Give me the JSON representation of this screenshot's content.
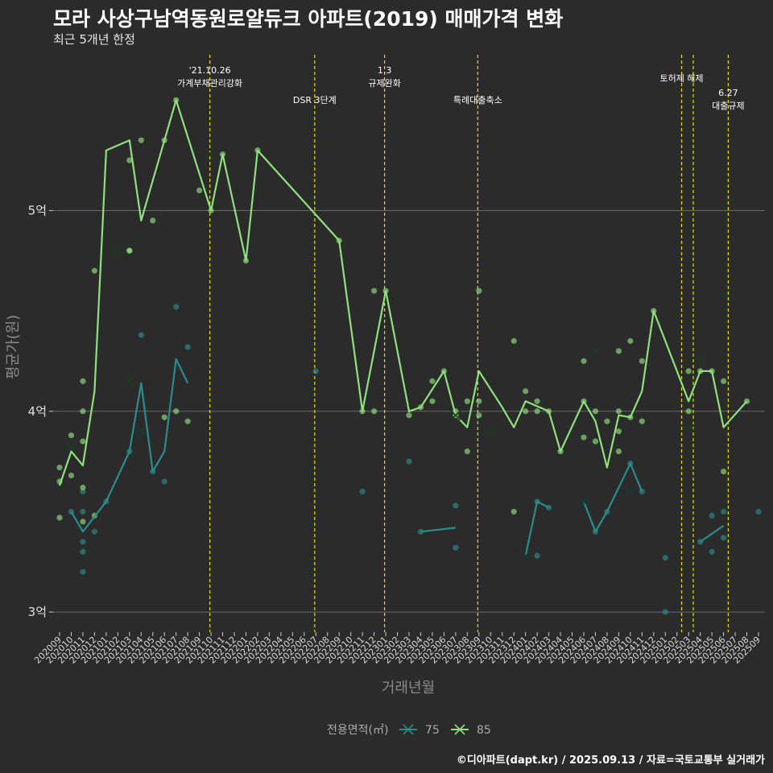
{
  "title": "모라 사상구남역동원로얄듀크 아파트(2019) 매매가격 변화",
  "subtitle": "최근 5개년 한정",
  "caption": "©디아파트(dapt.kr) / 2025.09.13 / 자료=국토교통부 실거래가",
  "colors": {
    "s75": "#2a8c8c",
    "s85": "#8fe07e",
    "vline": "#e8e000",
    "grid": "#6a6a6a"
  },
  "chart_data": {
    "type": "line",
    "xlabel": "거래년월",
    "ylabel": "평균가(원)",
    "ylim": [
      2.9,
      5.8
    ],
    "yticks": [
      {
        "value": 3,
        "label": "3억"
      },
      {
        "value": 4,
        "label": "4억"
      },
      {
        "value": 5,
        "label": "5억"
      }
    ],
    "categories": [
      "202009",
      "202010",
      "202011",
      "202012",
      "202101",
      "202102",
      "202103",
      "202104",
      "202105",
      "202106",
      "202107",
      "202108",
      "202109",
      "202110",
      "202111",
      "202112",
      "202201",
      "202202",
      "202203",
      "202204",
      "202205",
      "202206",
      "202207",
      "202208",
      "202209",
      "202210",
      "202211",
      "202212",
      "202301",
      "202302",
      "202303",
      "202304",
      "202305",
      "202306",
      "202307",
      "202308",
      "202309",
      "202310",
      "202311",
      "202312",
      "202401",
      "202402",
      "202403",
      "202404",
      "202405",
      "202406",
      "202407",
      "202408",
      "202409",
      "202410",
      "202411",
      "202412",
      "202501",
      "202502",
      "202503",
      "202504",
      "202505",
      "202506",
      "202507",
      "202508",
      "202509"
    ],
    "legend_title": "전용면적(㎡)",
    "series": [
      {
        "name": "75",
        "line": [
          {
            "segment": [
              [
                1,
                3.5
              ],
              [
                2,
                3.4
              ],
              [
                4,
                3.55
              ],
              [
                6,
                3.8
              ],
              [
                7,
                4.14
              ],
              [
                8,
                3.7
              ],
              [
                9,
                3.8
              ],
              [
                10,
                4.26
              ],
              [
                11,
                4.14
              ]
            ]
          },
          {
            "segment": [
              [
                31,
                3.4
              ],
              [
                34,
                3.42
              ]
            ]
          },
          {
            "segment": [
              [
                40,
                3.28
              ],
              [
                41,
                3.55
              ],
              [
                42,
                3.52
              ]
            ]
          },
          {
            "segment": [
              [
                45,
                3.55
              ],
              [
                46,
                3.4
              ],
              [
                47,
                3.5
              ],
              [
                49,
                3.74
              ],
              [
                50,
                3.6
              ]
            ]
          },
          {
            "segment": [
              [
                55,
                3.35
              ],
              [
                57,
                3.43
              ]
            ]
          }
        ],
        "points": [
          [
            1,
            3.5
          ],
          [
            2,
            3.6
          ],
          [
            2,
            3.5
          ],
          [
            2,
            3.35
          ],
          [
            2,
            3.3
          ],
          [
            2,
            3.2
          ],
          [
            3,
            3.4
          ],
          [
            4,
            3.55
          ],
          [
            6,
            3.8
          ],
          [
            7,
            4.38
          ],
          [
            8,
            3.7
          ],
          [
            9,
            3.65
          ],
          [
            10,
            4.52
          ],
          [
            11,
            4.32
          ],
          [
            22,
            4.2
          ],
          [
            26,
            3.6
          ],
          [
            30,
            3.75
          ],
          [
            31,
            3.4
          ],
          [
            34,
            3.53
          ],
          [
            34,
            3.32
          ],
          [
            41,
            3.28
          ],
          [
            41,
            3.55
          ],
          [
            42,
            3.52
          ],
          [
            46,
            3.4
          ],
          [
            47,
            3.5
          ],
          [
            49,
            3.74
          ],
          [
            50,
            3.6
          ],
          [
            52,
            3.27
          ],
          [
            52,
            3.0
          ],
          [
            55,
            3.35
          ],
          [
            56,
            3.3
          ],
          [
            56,
            3.48
          ],
          [
            57,
            3.37
          ],
          [
            57,
            3.5
          ],
          [
            60,
            3.5
          ]
        ],
        "crosses": [
          [
            7,
            3.9
          ],
          [
            40,
            3.28
          ],
          [
            45,
            3.55
          ],
          [
            49,
            3.6
          ]
        ]
      },
      {
        "name": "85",
        "line": [
          {
            "segment": [
              [
                0,
                3.63
              ],
              [
                1,
                3.8
              ],
              [
                2,
                3.73
              ],
              [
                3,
                4.1
              ],
              [
                4,
                5.3
              ],
              [
                6,
                5.35
              ],
              [
                7,
                4.95
              ],
              [
                10,
                5.55
              ],
              [
                13,
                5.0
              ],
              [
                14,
                5.28
              ],
              [
                16,
                4.75
              ],
              [
                17,
                5.3
              ],
              [
                24,
                4.85
              ],
              [
                26,
                4.0
              ],
              [
                28,
                4.6
              ],
              [
                30,
                4.0
              ],
              [
                31,
                4.02
              ],
              [
                33,
                4.2
              ],
              [
                34,
                3.98
              ],
              [
                35,
                3.92
              ],
              [
                36,
                4.2
              ],
              [
                38,
                4.02
              ],
              [
                39,
                3.92
              ],
              [
                40,
                4.05
              ],
              [
                42,
                4.0
              ],
              [
                43,
                3.8
              ],
              [
                45,
                4.05
              ],
              [
                46,
                3.95
              ],
              [
                47,
                3.72
              ],
              [
                48,
                3.98
              ],
              [
                49,
                3.97
              ],
              [
                50,
                4.1
              ],
              [
                51,
                4.5
              ],
              [
                54,
                4.05
              ],
              [
                55,
                4.2
              ],
              [
                56,
                4.2
              ],
              [
                57,
                3.92
              ],
              [
                59,
                4.05
              ]
            ]
          }
        ],
        "points": [
          [
            0,
            3.72
          ],
          [
            0,
            3.65
          ],
          [
            0,
            3.47
          ],
          [
            1,
            3.88
          ],
          [
            1,
            3.68
          ],
          [
            2,
            4.15
          ],
          [
            2,
            3.85
          ],
          [
            2,
            3.62
          ],
          [
            2,
            3.45
          ],
          [
            2,
            4.0
          ],
          [
            3,
            4.7
          ],
          [
            3,
            3.48
          ],
          [
            6,
            4.8
          ],
          [
            6,
            5.25
          ],
          [
            6,
            4.8
          ],
          [
            7,
            5.35
          ],
          [
            8,
            4.95
          ],
          [
            9,
            3.97
          ],
          [
            9,
            5.35
          ],
          [
            10,
            4.0
          ],
          [
            10,
            5.55
          ],
          [
            11,
            3.95
          ],
          [
            12,
            5.1
          ],
          [
            13,
            5.0
          ],
          [
            14,
            5.28
          ],
          [
            16,
            4.75
          ],
          [
            17,
            5.3
          ],
          [
            24,
            4.85
          ],
          [
            26,
            4.0
          ],
          [
            27,
            4.6
          ],
          [
            27,
            4.0
          ],
          [
            28,
            4.6
          ],
          [
            30,
            3.98
          ],
          [
            31,
            4.02
          ],
          [
            32,
            4.15
          ],
          [
            32,
            4.05
          ],
          [
            33,
            4.2
          ],
          [
            34,
            3.98
          ],
          [
            34,
            4.0
          ],
          [
            35,
            3.8
          ],
          [
            35,
            4.05
          ],
          [
            36,
            4.6
          ],
          [
            36,
            4.05
          ],
          [
            36,
            3.98
          ],
          [
            39,
            4.35
          ],
          [
            39,
            3.5
          ],
          [
            40,
            4.1
          ],
          [
            40,
            4.0
          ],
          [
            41,
            4.05
          ],
          [
            41,
            4.0
          ],
          [
            42,
            4.0
          ],
          [
            43,
            3.8
          ],
          [
            45,
            4.25
          ],
          [
            45,
            3.87
          ],
          [
            45,
            4.05
          ],
          [
            46,
            4.0
          ],
          [
            46,
            3.85
          ],
          [
            47,
            3.95
          ],
          [
            48,
            4.3
          ],
          [
            48,
            4.0
          ],
          [
            48,
            3.8
          ],
          [
            48,
            3.9
          ],
          [
            49,
            4.35
          ],
          [
            49,
            3.97
          ],
          [
            50,
            4.25
          ],
          [
            50,
            3.95
          ],
          [
            51,
            4.5
          ],
          [
            54,
            4.2
          ],
          [
            54,
            4.0
          ],
          [
            55,
            4.2
          ],
          [
            56,
            4.2
          ],
          [
            57,
            4.15
          ],
          [
            57,
            3.7
          ],
          [
            59,
            4.05
          ]
        ],
        "crosses": [
          [
            1,
            3.82
          ],
          [
            5,
            4.8
          ],
          [
            6,
            4.15
          ],
          [
            13,
            5.28
          ],
          [
            34,
            3.98
          ],
          [
            37,
            3.9
          ],
          [
            46,
            4.3
          ],
          [
            54,
            3.93
          ],
          [
            55,
            4.25
          ]
        ]
      }
    ],
    "annotations": [
      {
        "x": 12.9,
        "lines": [
          "'21.10.26",
          "가계부채관리강화"
        ],
        "row": 0
      },
      {
        "x": 21.9,
        "lines": [
          "DSR 3단계"
        ],
        "row": 2
      },
      {
        "x": 27.9,
        "lines": [
          "1.3",
          "규제완화"
        ],
        "row": 0
      },
      {
        "x": 35.9,
        "lines": [
          "특례대출축소"
        ],
        "row": 2
      },
      {
        "x": 53.4,
        "lines": [
          "토허제 해제"
        ],
        "row": 1
      },
      {
        "x": 54.4,
        "lines": [],
        "row": 1
      },
      {
        "x": 57.4,
        "lines": [
          "6.27",
          "대출규제"
        ],
        "row": 3
      }
    ]
  }
}
